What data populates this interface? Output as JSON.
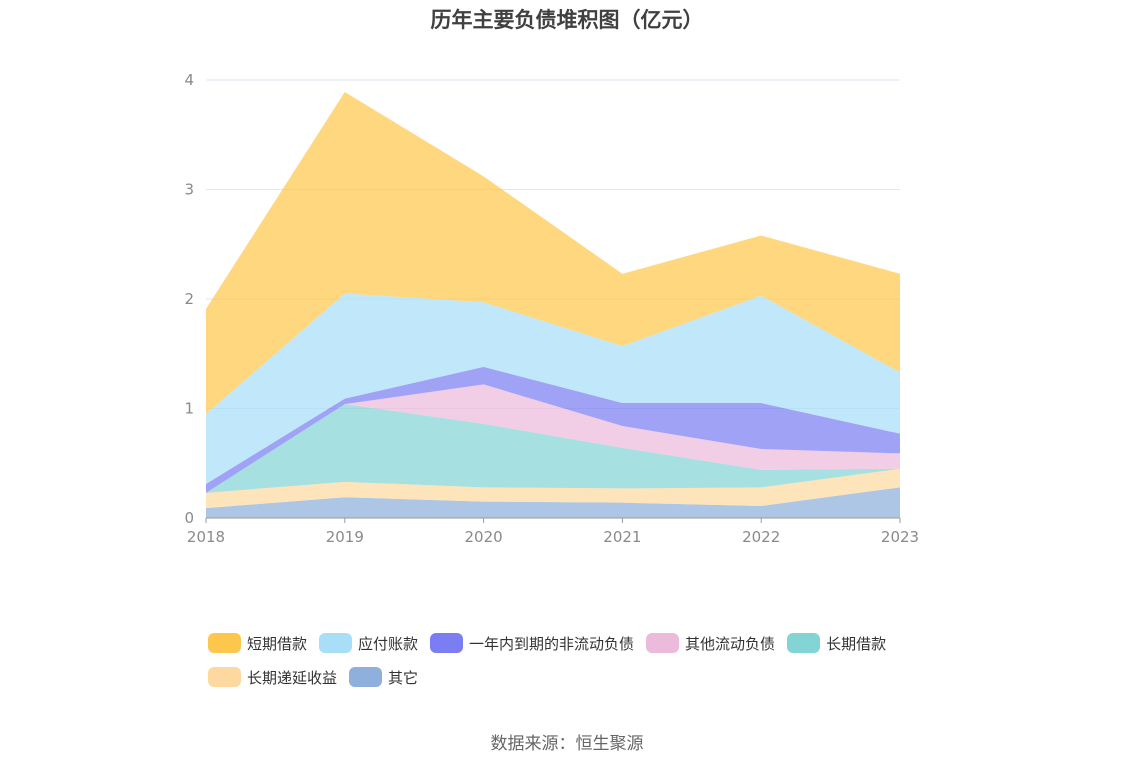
{
  "title": "历年主要负债堆积图（亿元）",
  "source": "数据来源：恒生聚源",
  "chart_data": {
    "type": "area",
    "stacked": true,
    "categories": [
      "2018",
      "2019",
      "2020",
      "2021",
      "2022",
      "2023"
    ],
    "ylim": [
      0,
      4
    ],
    "yticks": [
      "0",
      "1",
      "2",
      "3",
      "4"
    ],
    "grid": true,
    "legend_position": "bottom",
    "series": [
      {
        "name": "其它",
        "color": "#8fb0dc",
        "values": [
          0.09,
          0.19,
          0.15,
          0.14,
          0.11,
          0.28
        ]
      },
      {
        "name": "长期递延收益",
        "color": "#fdd9a0",
        "values": [
          0.14,
          0.14,
          0.13,
          0.13,
          0.17,
          0.17
        ]
      },
      {
        "name": "长期借款",
        "color": "#83d4d4",
        "values": [
          0.0,
          0.71,
          0.58,
          0.37,
          0.16,
          0.0
        ]
      },
      {
        "name": "其他流动负债",
        "color": "#ecbbdb",
        "values": [
          0.0,
          0.0,
          0.36,
          0.2,
          0.19,
          0.14
        ]
      },
      {
        "name": "一年内到期的非流动负债",
        "color": "#7b7ef2",
        "values": [
          0.08,
          0.05,
          0.16,
          0.21,
          0.42,
          0.18
        ]
      },
      {
        "name": "应付账款",
        "color": "#a9def8",
        "values": [
          0.64,
          0.96,
          0.59,
          0.52,
          0.98,
          0.56
        ]
      },
      {
        "name": "短期借款",
        "color": "#fdc74e",
        "values": [
          0.96,
          1.84,
          1.15,
          0.66,
          0.55,
          0.9
        ]
      }
    ]
  },
  "legend_order": [
    {
      "name": "短期借款",
      "color": "#fdc74e"
    },
    {
      "name": "应付账款",
      "color": "#a9def8"
    },
    {
      "name": "一年内到期的非流动负债",
      "color": "#7b7ef2"
    },
    {
      "name": "其他流动负债",
      "color": "#ecbbdb"
    },
    {
      "name": "长期借款",
      "color": "#83d4d4"
    },
    {
      "name": "长期递延收益",
      "color": "#fdd9a0"
    },
    {
      "name": "其它",
      "color": "#8fb0dc"
    }
  ]
}
